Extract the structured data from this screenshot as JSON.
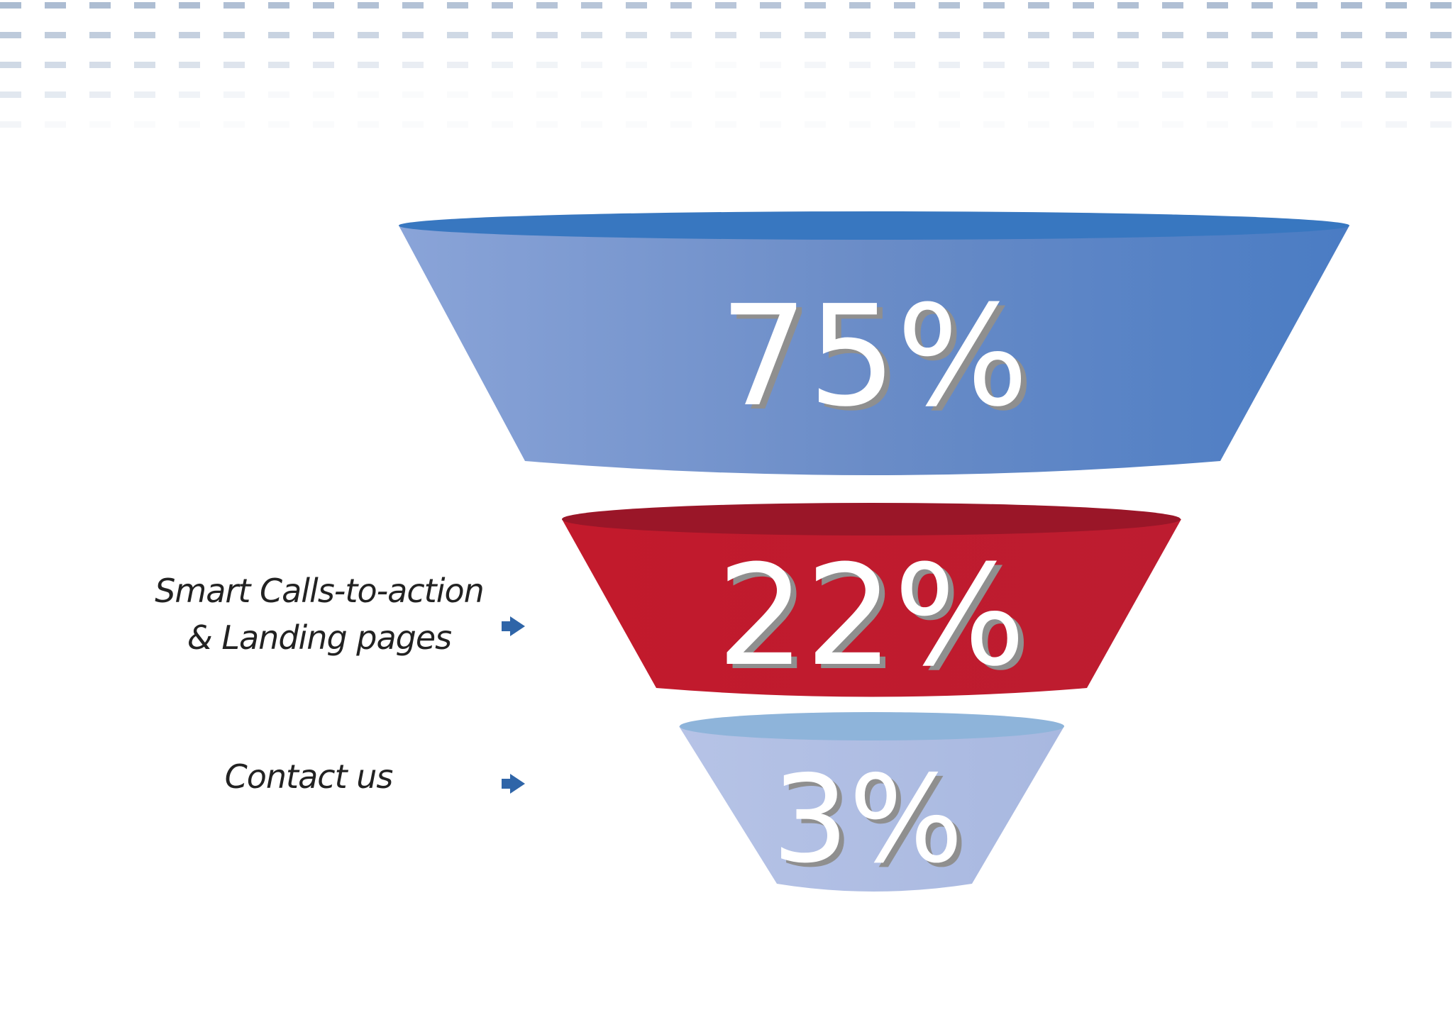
{
  "colors": {
    "dash": "#a7b8cf",
    "stage1": "#6f94cf",
    "stage2": "#c01c2f",
    "stage3": "#adbde3",
    "arrow": "#2f65a8",
    "label_text": "#ffffff",
    "label_shadow": "#8f8f8f"
  },
  "funnel": {
    "stages": [
      {
        "label": "75%"
      },
      {
        "label": "22%"
      },
      {
        "label": "3%"
      }
    ]
  },
  "annotations": {
    "smart_cta_line1": "Smart Calls-to-action",
    "smart_cta_line2": "& Landing pages",
    "contact_us": "Contact us"
  },
  "icons": {
    "arrow": "arrow-right-icon"
  }
}
